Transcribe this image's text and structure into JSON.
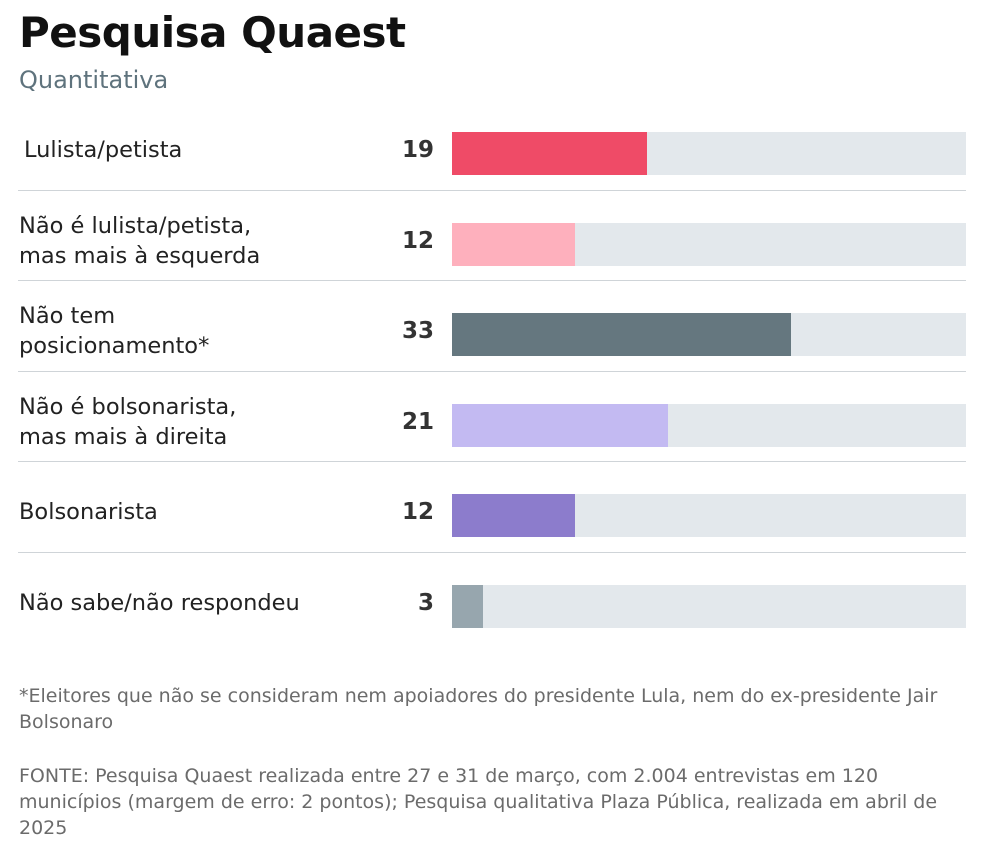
{
  "chart_data": {
    "type": "bar",
    "orientation": "horizontal",
    "title": "Pesquisa Quaest",
    "subtitle": "Quantitativa",
    "xlim": [
      0,
      50
    ],
    "categories": [
      "Lulista/petista",
      "Não é lulista/petista, mas mais à esquerda",
      "Não tem posicionamento*",
      "Não é bolsonarista, mas mais à direita",
      "Bolsonarista",
      "Não sabe/não respondeu"
    ],
    "rows": [
      {
        "label_lines": [
          "Lulista/petista"
        ],
        "value": 19,
        "color": "#ef4b67"
      },
      {
        "label_lines": [
          "Não é lulista/petista,",
          "mas mais à esquerda"
        ],
        "value": 12,
        "color": "#feb0bd"
      },
      {
        "label_lines": [
          "Não tem",
          "posicionamento*"
        ],
        "value": 33,
        "color": "#65777f"
      },
      {
        "label_lines": [
          "Não é bolsonarista,",
          "mas mais à direita"
        ],
        "value": 21,
        "color": "#c3baf2"
      },
      {
        "label_lines": [
          "Bolsonarista"
        ],
        "value": 12,
        "color": "#8c7ccc"
      },
      {
        "label_lines": [
          "Não sabe/não respondeu"
        ],
        "value": 3,
        "color": "#97a6ae"
      }
    ],
    "track_color": "#e3e8ec"
  },
  "footnote": "*Eleitores que não se consideram nem apoiadores do presidente Lula, nem do ex-presidente Jair Bolsonaro",
  "source": "FONTE: Pesquisa Quaest realizada entre 27 e 31 de março, com 2.004 entrevistas em 120 municípios (margem de erro: 2 pontos); Pesquisa qualitativa Plaza Pública, realizada em abril de 2025"
}
